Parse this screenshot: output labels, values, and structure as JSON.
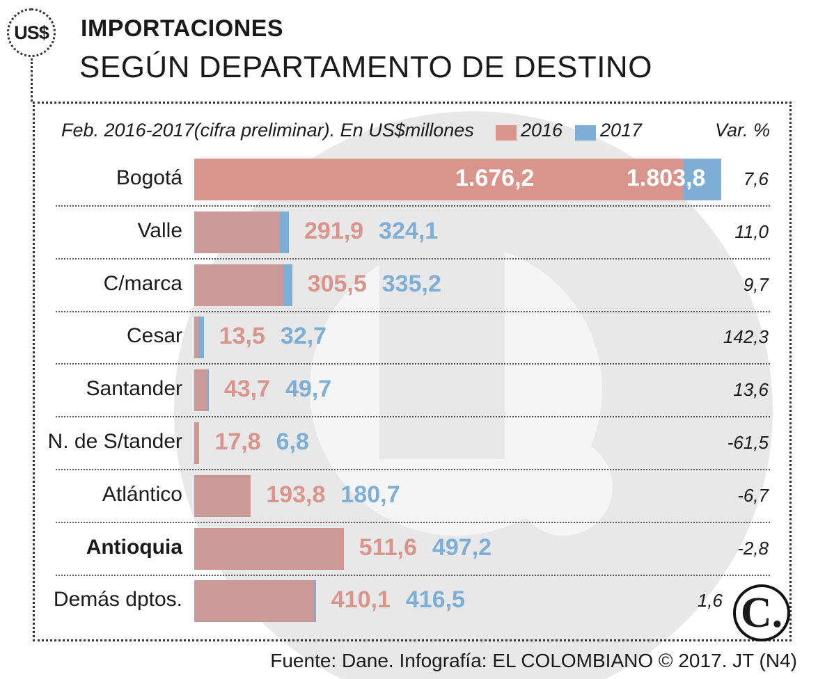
{
  "header": {
    "badge": "US$",
    "title": "IMPORTACIONES",
    "subtitle": "SEGÚN DEPARTAMENTO DE DESTINO"
  },
  "colors": {
    "c2016": "#d9958b",
    "c2017": "#7eaed6",
    "overlap": "#c99a98"
  },
  "chart_data": {
    "type": "bar",
    "title": "IMPORTACIONES SEGÚN DEPARTAMENTO DE DESTINO",
    "note": "Feb. 2016-2017(cifra preliminar). En US$millones",
    "legend": [
      "2016",
      "2017"
    ],
    "var_header": "Var. %",
    "orientation": "horizontal-overlapped",
    "categories": [
      "Bogotá",
      "Valle",
      "C/marca",
      "Cesar",
      "Santander",
      "N. de S/tander",
      "Atlántico",
      "Antioquia",
      "Demás dptos."
    ],
    "series": [
      {
        "name": "2016",
        "values": [
          1676.2,
          291.9,
          305.5,
          13.5,
          43.7,
          17.8,
          193.8,
          511.6,
          410.1
        ]
      },
      {
        "name": "2017",
        "values": [
          1803.8,
          324.1,
          335.2,
          32.7,
          49.7,
          6.8,
          180.7,
          497.2,
          416.5
        ]
      }
    ],
    "labels_2016": [
      "1.676,2",
      "291,9",
      "305,5",
      "13,5",
      "43,7",
      "17,8",
      "193,8",
      "511,6",
      "410,1"
    ],
    "labels_2017": [
      "1.803,8",
      "324,1",
      "335,2",
      "32,7",
      "49,7",
      "6,8",
      "180,7",
      "497,2",
      "416,5"
    ],
    "var_pct": [
      "7,6",
      "11,0",
      "9,7",
      "142,3",
      "13,6",
      "-61,5",
      "-6,7",
      "-2,8",
      "1,6"
    ],
    "highlight": "Antioquia",
    "xlim": [
      0,
      1803.8
    ]
  },
  "footer": {
    "source": "Fuente: Dane. Infografía: EL COLOMBIANO © 2017. JT (N4)",
    "logo": "C."
  }
}
